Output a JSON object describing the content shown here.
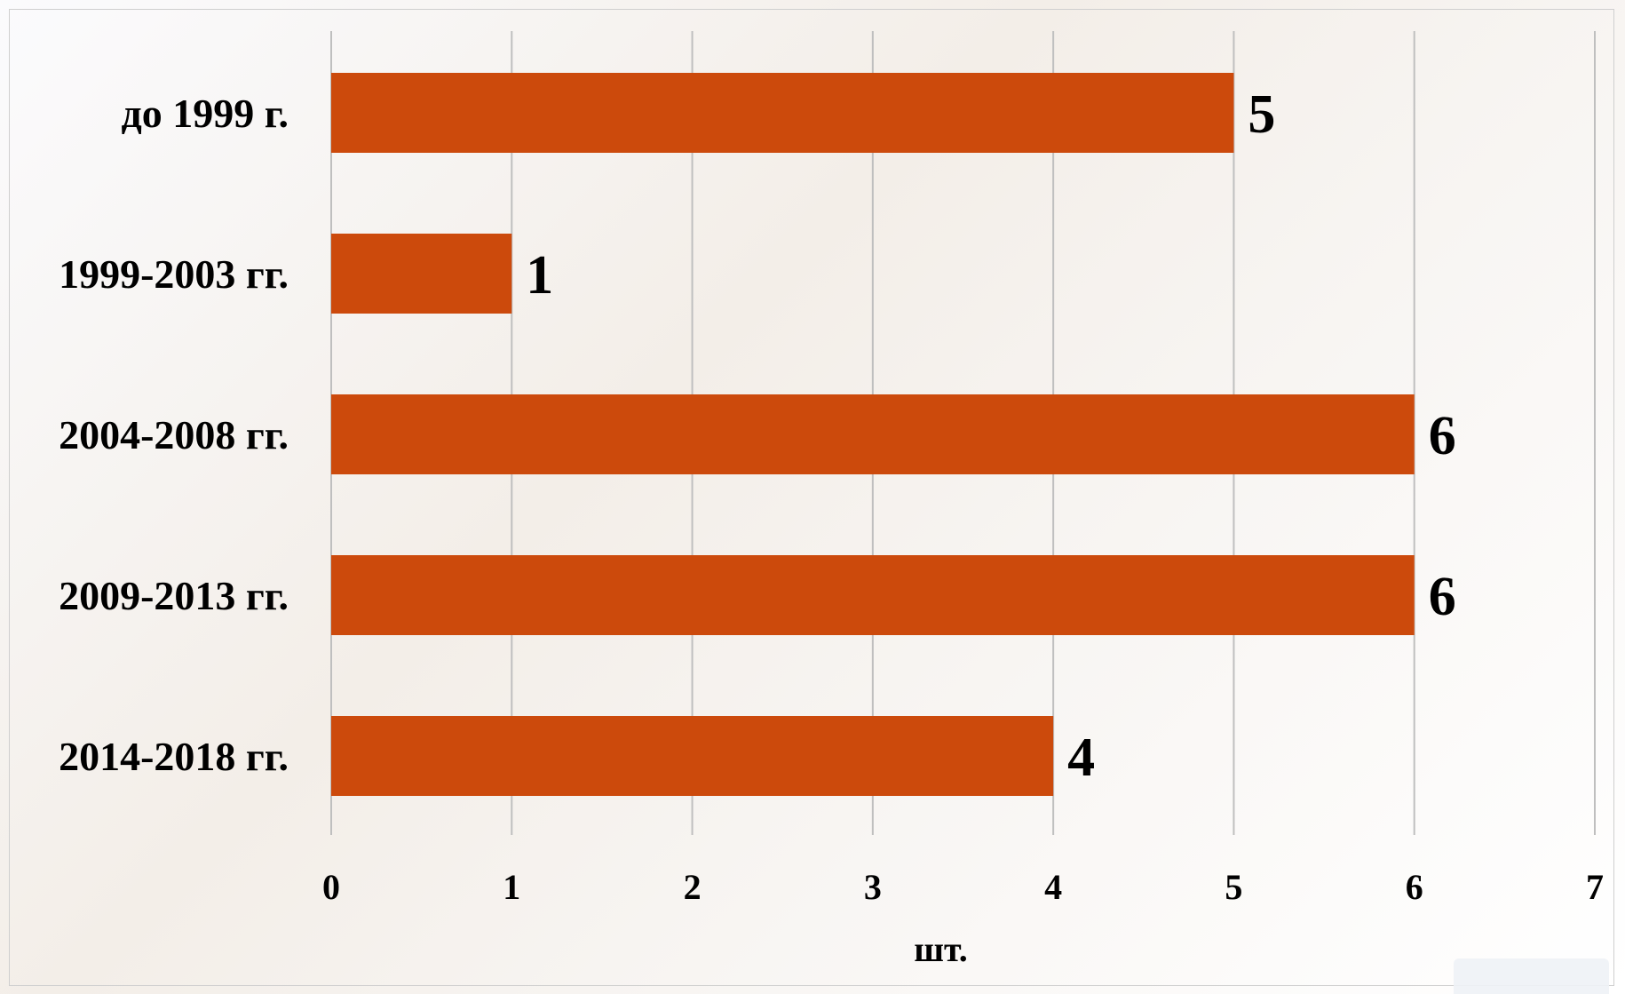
{
  "chart_data": {
    "type": "bar",
    "orientation": "horizontal",
    "categories": [
      "до 1999 г.",
      "1999-2003 гг.",
      "2004-2008 гг.",
      "2009-2013 гг.",
      "2014-2018 гг."
    ],
    "values": [
      5,
      1,
      6,
      6,
      4
    ],
    "xlabel": "шт.",
    "ylabel": "",
    "xlim": [
      0,
      7
    ],
    "xticks": [
      0,
      1,
      2,
      3,
      4,
      5,
      6,
      7
    ],
    "grid": "vertical",
    "legend": "none",
    "colors": {
      "bar": "#CC4A0C",
      "grid": "#BFBFBF",
      "text": "#000000"
    }
  }
}
